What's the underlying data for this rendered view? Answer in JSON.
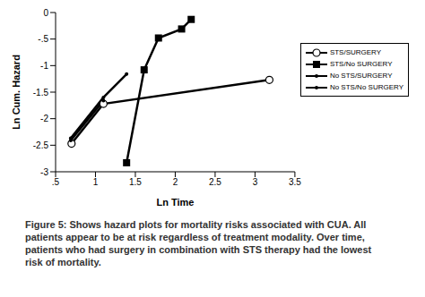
{
  "chart_data": {
    "type": "line",
    "caption": "Figure 5: Shows hazard plots for mortality risks associated with CUA. All patients appear to be at risk regardless of treatment modality. Over time, patients who had surgery in combination with STS therapy had the lowest risk of mortality.",
    "x_label": "Ln Time",
    "y_label": "Ln Cum. Hazard",
    "xlim": [
      0.5,
      3.5
    ],
    "xticks": [
      {
        "value": 0.5,
        "label": ".5"
      },
      1,
      1.5,
      2,
      2.5,
      3,
      3.5
    ],
    "ylim": [
      -3,
      0
    ],
    "yticks": [
      -3,
      -2.5,
      -2,
      -1.5,
      -1,
      {
        "value": -0.5,
        "label": "-.5"
      },
      0
    ],
    "grid": false,
    "legend": "right",
    "series": [
      {
        "name": "STS/SURGERY",
        "color": "#000000",
        "marker": "circle_open",
        "x": [
          0.7,
          1.1,
          3.18
        ],
        "values": [
          -2.47,
          -1.72,
          -1.27
        ]
      },
      {
        "name": "STS/No SURGERY",
        "color": "#000000",
        "marker": "square",
        "x": [
          1.39,
          1.61,
          1.79,
          2.08,
          2.2
        ],
        "values": [
          -2.83,
          -1.08,
          -0.48,
          -0.31,
          -0.13
        ]
      },
      {
        "name": "No STS/SURGERY",
        "color": "#000000",
        "marker": "dot",
        "x": [
          0.69,
          1.1
        ],
        "values": [
          -2.41,
          -1.66
        ]
      },
      {
        "name": "No STS/No SURGERY",
        "color": "#000000",
        "marker": "dot",
        "x": [
          0.69,
          1.1,
          1.39
        ],
        "values": [
          -2.37,
          -1.6,
          -1.16
        ]
      }
    ]
  }
}
